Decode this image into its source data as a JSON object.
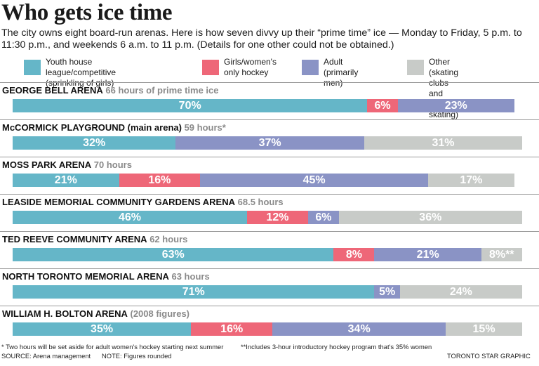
{
  "title": "Who gets ice time",
  "subtitle": "The city owns eight board-run arenas. Here is how seven divvy up their “prime time” ice — Monday to Friday, 5 p.m. to 11:30 p.m., and weekends 6 a.m. to 11 p.m. (Details for one other could not be obtained.)",
  "colors": {
    "youth": "#65b6c8",
    "girls": "#ee6778",
    "adult": "#8a93c5",
    "other": "#c8cbc8"
  },
  "legend": [
    {
      "key": "youth",
      "label": "Youth house league/competitive\n(sprinkling of girls)"
    },
    {
      "key": "girls",
      "label": "Girls/women's\nonly hockey"
    },
    {
      "key": "adult",
      "label": "Adult\n(primarily men)"
    },
    {
      "key": "other",
      "label": "Other (skating clubs\nand public skating)"
    }
  ],
  "chart_data": {
    "type": "bar",
    "orientation": "horizontal-stacked",
    "unit": "percent",
    "series_keys": [
      "youth",
      "girls",
      "adult",
      "other"
    ],
    "rows": [
      {
        "name": "GEORGE BELL ARENA",
        "note": "66 hours of prime time ice",
        "values": [
          70,
          6,
          23,
          0
        ],
        "labels": [
          "70%",
          "6%",
          "23%",
          ""
        ]
      },
      {
        "name": "McCORMICK PLAYGROUND (main arena)",
        "note": "59 hours*",
        "values": [
          32,
          0,
          37,
          31
        ],
        "labels": [
          "32%",
          "",
          "37%",
          "31%"
        ]
      },
      {
        "name": "MOSS PARK ARENA",
        "note": "70 hours",
        "values": [
          21,
          16,
          45,
          17
        ],
        "labels": [
          "21%",
          "16%",
          "45%",
          "17%"
        ]
      },
      {
        "name": "LEASIDE MEMORIAL COMMUNITY GARDENS ARENA",
        "note": "68.5 hours",
        "values": [
          46,
          12,
          6,
          36
        ],
        "labels": [
          "46%",
          "12%",
          "6%",
          "36%"
        ]
      },
      {
        "name": "TED REEVE COMMUNITY ARENA",
        "note": "62 hours",
        "values": [
          63,
          8,
          21,
          8
        ],
        "labels": [
          "63%",
          "8%",
          "21%",
          "8%**"
        ]
      },
      {
        "name": "NORTH TORONTO MEMORIAL ARENA",
        "note": "63 hours",
        "values": [
          71,
          0,
          5,
          24
        ],
        "labels": [
          "71%",
          "",
          "5%",
          "24%"
        ]
      },
      {
        "name": "WILLIAM H. BOLTON ARENA",
        "note": "(2008 figures)",
        "values": [
          35,
          16,
          34,
          15
        ],
        "labels": [
          "35%",
          "16%",
          "34%",
          "15%"
        ]
      }
    ]
  },
  "footer": {
    "note1": "* Two hours will be set aside for adult women's hockey starting next summer",
    "note2": "**Includes 3-hour introductory hockey program that's 35% women",
    "source": "SOURCE: Arena management",
    "rounding": "NOTE: Figures rounded",
    "credit": "TORONTO STAR GRAPHIC"
  }
}
